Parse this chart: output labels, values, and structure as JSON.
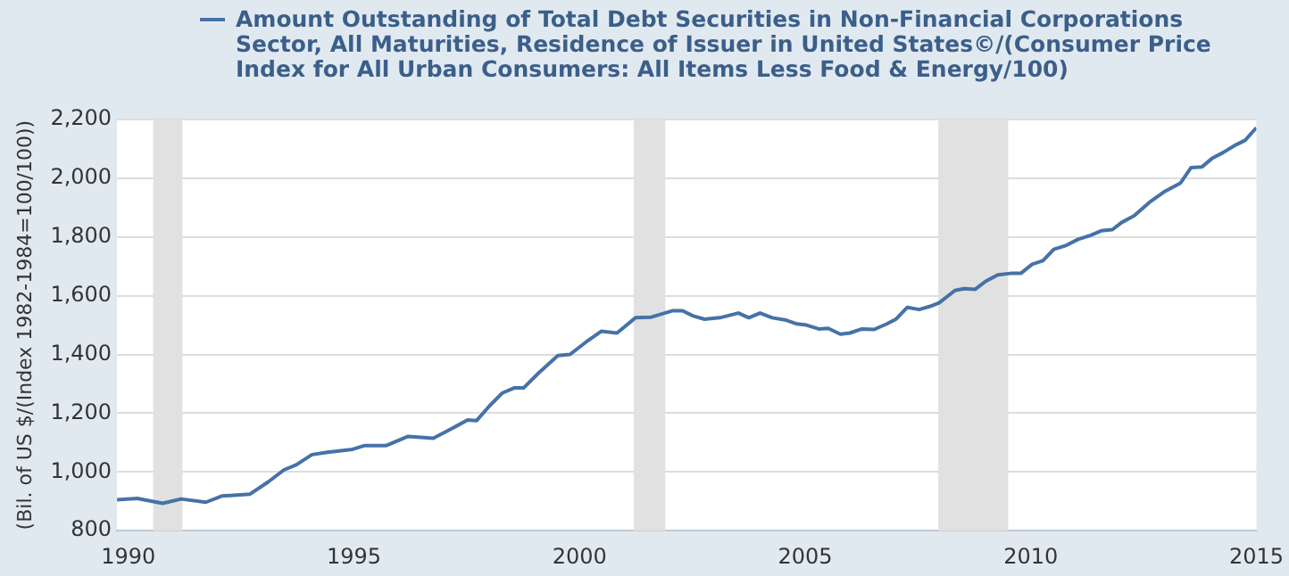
{
  "chart_data": {
    "type": "line",
    "ylabel": "(Bil. of US $/(Index 1982-1984=100/100))",
    "x": [
      1989.75,
      1990.2,
      1990.76,
      1991.17,
      1991.72,
      1992.07,
      1992.69,
      1993.1,
      1993.45,
      1993.72,
      1994.07,
      1994.41,
      1994.97,
      1995.24,
      1995.72,
      1996.2,
      1996.76,
      1997.1,
      1997.52,
      1997.72,
      1998.0,
      1998.28,
      1998.55,
      1998.76,
      1999.1,
      1999.52,
      1999.79,
      2000.14,
      2000.48,
      2000.83,
      2001.24,
      2001.59,
      2002.07,
      2002.28,
      2002.52,
      2002.77,
      2003.11,
      2003.52,
      2003.75,
      2004.0,
      2004.27,
      2004.55,
      2004.82,
      2005.03,
      2005.3,
      2005.51,
      2005.78,
      2005.99,
      2006.26,
      2006.53,
      2006.81,
      2007.01,
      2007.26,
      2007.53,
      2007.77,
      2007.97,
      2008.32,
      2008.52,
      2008.77,
      2009.0,
      2009.27,
      2009.55,
      2009.78,
      2010.03,
      2010.27,
      2010.51,
      2010.78,
      2011.05,
      2011.33,
      2011.56,
      2011.81,
      2012.01,
      2012.29,
      2012.63,
      2012.97,
      2013.32,
      2013.55,
      2013.79,
      2014.03,
      2014.27,
      2014.55,
      2014.75,
      2015.0
    ],
    "series": [
      {
        "name": "Amount Outstanding of Total Debt Securities in Non-Financial Corporations Sector, All Maturities, Residence of Issuer in United States©/(Consumer Price Index for All Urban Consumers: All Items Less Food & Energy/100)",
        "color": "#4572a7",
        "values": [
          905,
          910,
          893,
          908,
          897,
          918,
          924,
          966,
          1007,
          1024,
          1059,
          1067,
          1077,
          1090,
          1090,
          1121,
          1115,
          1142,
          1177,
          1175,
          1224,
          1268,
          1286,
          1286,
          1338,
          1396,
          1400,
          1442,
          1479,
          1473,
          1525,
          1527,
          1549,
          1549,
          1531,
          1520,
          1525,
          1541,
          1525,
          1541,
          1525,
          1518,
          1504,
          1500,
          1487,
          1489,
          1469,
          1473,
          1487,
          1485,
          1504,
          1520,
          1560,
          1553,
          1564,
          1576,
          1618,
          1624,
          1622,
          1649,
          1671,
          1676,
          1676,
          1707,
          1719,
          1758,
          1771,
          1792,
          1806,
          1821,
          1825,
          1849,
          1872,
          1918,
          1955,
          1984,
          2036,
          2038,
          2069,
          2088,
          2114,
          2129,
          2172
        ]
      }
    ],
    "xlim": [
      1989.75,
      2015
    ],
    "xticks": [
      1990,
      1995,
      2000,
      2005,
      2010,
      2015
    ],
    "ylim": [
      800,
      2200
    ],
    "yticks": [
      {
        "value": 800,
        "label": "800"
      },
      {
        "value": 1000,
        "label": "1,000"
      },
      {
        "value": 1200,
        "label": "1,200"
      },
      {
        "value": 1400,
        "label": "1,400"
      },
      {
        "value": 1600,
        "label": "1,600"
      },
      {
        "value": 1800,
        "label": "1,800"
      },
      {
        "value": 2000,
        "label": "2,000"
      },
      {
        "value": 2200,
        "label": "2,200"
      }
    ],
    "bands": [
      {
        "axis": "x",
        "from": 1990.55,
        "to": 1991.2,
        "color": "#e1e1e1"
      },
      {
        "axis": "x",
        "from": 2001.2,
        "to": 2001.9,
        "color": "#e1e1e1"
      },
      {
        "axis": "x",
        "from": 2007.95,
        "to": 2009.5,
        "color": "#e1e1e1"
      }
    ],
    "grid": "y",
    "legend": "top left"
  }
}
